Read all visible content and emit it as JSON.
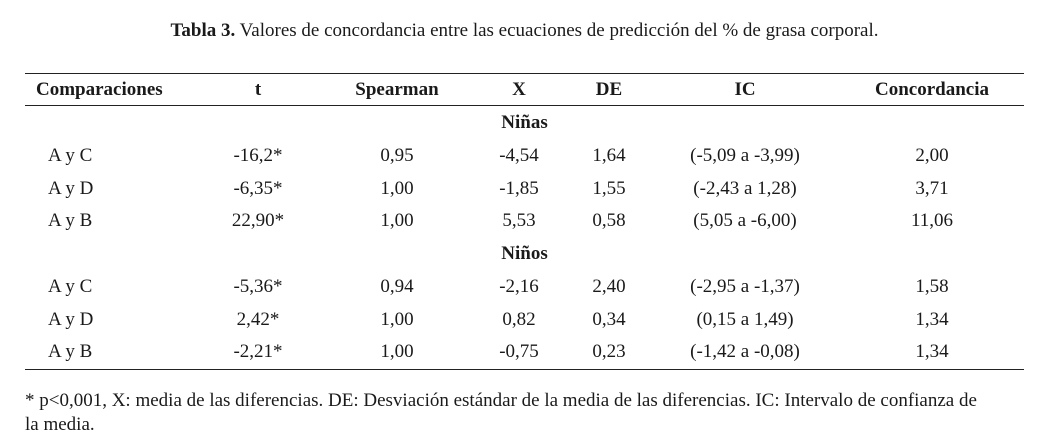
{
  "caption": {
    "label": "Tabla 3.",
    "text": "Valores de concordancia entre las ecuaciones de predicción del % de grasa corporal."
  },
  "columns": [
    "Comparaciones",
    "t",
    "Spearman",
    "X",
    "DE",
    "IC",
    "Concordancia"
  ],
  "groups": [
    {
      "title": "Niñas",
      "rows": [
        [
          "A y C",
          "-16,2*",
          "0,95",
          "-4,54",
          "1,64",
          "(-5,09 a -3,99)",
          "2,00"
        ],
        [
          "A y D",
          "-6,35*",
          "1,00",
          "-1,85",
          "1,55",
          "(-2,43 a 1,28)",
          "3,71"
        ],
        [
          "A y B",
          "22,90*",
          "1,00",
          "5,53",
          "0,58",
          "(5,05 a -6,00)",
          "11,06"
        ]
      ]
    },
    {
      "title": "Niños",
      "rows": [
        [
          "A y C",
          "-5,36*",
          "0,94",
          "-2,16",
          "2,40",
          "(-2,95 a -1,37)",
          "1,58"
        ],
        [
          "A y D",
          "2,42*",
          "1,00",
          "0,82",
          "0,34",
          "(0,15 a 1,49)",
          "1,34"
        ],
        [
          "A y B",
          "-2,21*",
          "1,00",
          "-0,75",
          "0,23",
          "(-1,42 a -0,08)",
          "1,34"
        ]
      ]
    }
  ],
  "footnote": "* p<0,001, X: media de las diferencias. DE: Desviación estándar de la media de las diferencias. IC: Intervalo de confianza de la media."
}
